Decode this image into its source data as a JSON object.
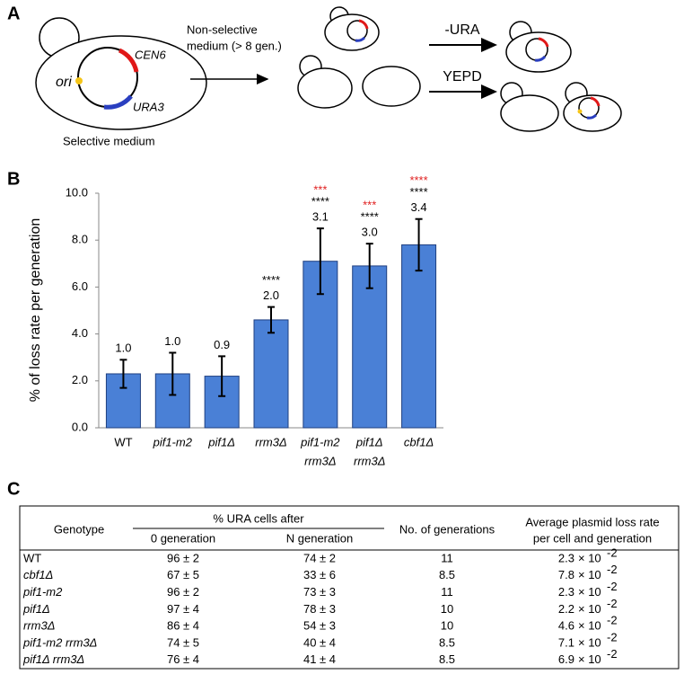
{
  "panel_a": {
    "label": "A",
    "ori": "ori",
    "cen": "CEN6",
    "ura": "URA3",
    "selective": "Selective medium",
    "nonselective": [
      "Non-selective",
      "medium (> 8 gen.)"
    ],
    "ura_minus": "-URA",
    "yepd": "YEPD"
  },
  "panel_b": {
    "label": "B"
  },
  "chart_data": {
    "type": "bar",
    "ylabel": "% of loss rate per generation",
    "categories": [
      [
        "WT"
      ],
      [
        "pif1-m2"
      ],
      [
        "pif1Δ"
      ],
      [
        "rrm3Δ"
      ],
      [
        "pif1-m2",
        "rrm3Δ"
      ],
      [
        "pif1Δ",
        "rrm3Δ"
      ],
      [
        "cbf1Δ"
      ]
    ],
    "category_italic": [
      false,
      true,
      true,
      true,
      true,
      true,
      true
    ],
    "values": [
      2.3,
      2.3,
      2.2,
      4.6,
      7.1,
      6.9,
      7.8
    ],
    "errors": [
      0.6,
      0.9,
      0.85,
      0.55,
      1.4,
      0.95,
      1.1
    ],
    "ratio_labels": [
      "1.0",
      "1.0",
      "0.9",
      "2.0",
      "3.1",
      "3.0",
      "3.4"
    ],
    "sig_black": [
      null,
      null,
      null,
      "****",
      "****",
      "****",
      "****"
    ],
    "sig_red": [
      null,
      null,
      null,
      null,
      "***",
      "***",
      "****"
    ],
    "color": "#4a80d6",
    "sig_red_color": "#e02020",
    "ylim": [
      0,
      10
    ],
    "yticks": [
      {
        "value": 0,
        "label": "0.0"
      },
      {
        "value": 2,
        "label": "2.0"
      },
      {
        "value": 4,
        "label": "4.0"
      },
      {
        "value": 6,
        "label": "6.0"
      },
      {
        "value": 8,
        "label": "8.0"
      },
      {
        "value": 10,
        "label": "10.0"
      }
    ],
    "grid": false
  },
  "panel_c": {
    "label": "C",
    "headers": {
      "genotype": "Genotype",
      "ura": "% URA cells after",
      "gen0": "0 generation",
      "genN": "N generation",
      "generations": "No. of generations",
      "rate": [
        "Average plasmid loss rate",
        "per cell and generation"
      ]
    },
    "rows": [
      {
        "genotype": "WT",
        "italic": false,
        "gen0": "96 ± 2",
        "genN": "74 ± 2",
        "generations": "11",
        "rate": "2.3",
        "times": "× 10",
        "exp": "-2"
      },
      {
        "genotype": "cbf1Δ",
        "italic": true,
        "gen0": "67 ± 5",
        "genN": "33 ± 6",
        "generations": "8.5",
        "rate": "7.8",
        "times": "× 10",
        "exp": "-2"
      },
      {
        "genotype": "pif1-m2",
        "italic": true,
        "gen0": "96 ± 2",
        "genN": "73 ± 3",
        "generations": "11",
        "rate": "2.3",
        "times": "× 10",
        "exp": "-2"
      },
      {
        "genotype": "pif1Δ",
        "italic": true,
        "gen0": "97 ± 4",
        "genN": "78 ± 3",
        "generations": "10",
        "rate": "2.2",
        "times": "× 10",
        "exp": "-2"
      },
      {
        "genotype": "rrm3Δ",
        "italic": true,
        "gen0": "86 ± 4",
        "genN": "54 ± 3",
        "generations": "10",
        "rate": "4.6",
        "times": "× 10",
        "exp": "-2"
      },
      {
        "genotype": "pif1-m2 rrm3Δ",
        "italic": true,
        "gen0": "74 ± 5",
        "genN": "40 ± 4",
        "generations": "8.5",
        "rate": "7.1",
        "times": "× 10",
        "exp": "-2"
      },
      {
        "genotype": "pif1Δ rrm3Δ",
        "italic": true,
        "gen0": "76 ± 4",
        "genN": "41 ± 4",
        "generations": "8.5",
        "rate": "6.9",
        "times": "× 10",
        "exp": "-2"
      }
    ]
  }
}
